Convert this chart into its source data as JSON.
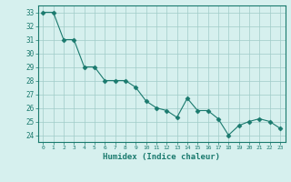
{
  "x": [
    0,
    1,
    2,
    3,
    4,
    5,
    6,
    7,
    8,
    9,
    10,
    11,
    12,
    13,
    14,
    15,
    16,
    17,
    18,
    19,
    20,
    21,
    22,
    23
  ],
  "y": [
    33,
    33,
    31,
    31,
    29,
    29,
    28,
    28,
    28,
    27.5,
    26.5,
    26,
    25.8,
    25.3,
    26.7,
    25.8,
    25.8,
    25.2,
    24.0,
    24.7,
    25.0,
    25.2,
    25.0,
    24.5
  ],
  "xlabel": "Humidex (Indice chaleur)",
  "ylabel": "",
  "ylim": [
    23.5,
    33.5
  ],
  "xlim": [
    -0.5,
    23.5
  ],
  "yticks": [
    24,
    25,
    26,
    27,
    28,
    29,
    30,
    31,
    32,
    33
  ],
  "xticks": [
    0,
    1,
    2,
    3,
    4,
    5,
    6,
    7,
    8,
    9,
    10,
    11,
    12,
    13,
    14,
    15,
    16,
    17,
    18,
    19,
    20,
    21,
    22,
    23
  ],
  "line_color": "#1a7a6e",
  "marker_color": "#1a7a6e",
  "bg_color": "#d6f0ee",
  "grid_color": "#a0ccc8",
  "tick_color": "#1a7a6e",
  "label_color": "#1a7a6e"
}
